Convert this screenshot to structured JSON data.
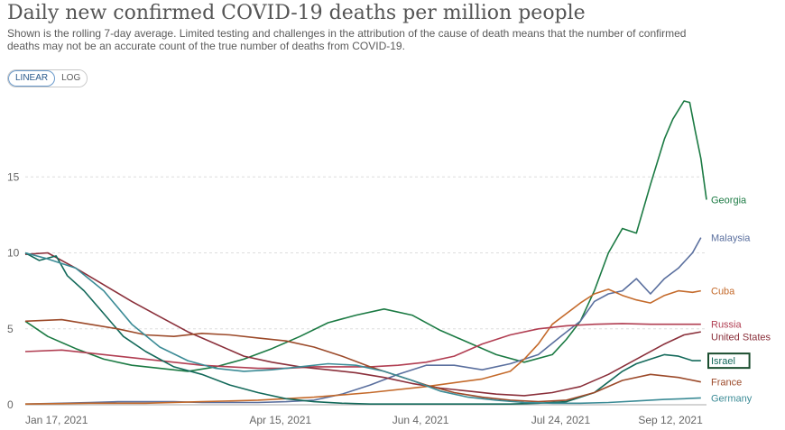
{
  "title": "Daily new confirmed COVID-19 deaths per million people",
  "subtitle": "Shown is the rolling 7-day average. Limited testing and challenges in the attribution of the cause of death means that the number of confirmed deaths may not be an accurate count of the true number of deaths from COVID-19.",
  "scale_toggle": {
    "linear": "LINEAR",
    "log": "LOG",
    "active": "linear"
  },
  "chart_data": {
    "type": "line",
    "x_tick_labels": [
      "Jan 17, 2021",
      "Apr 15, 2021",
      "Jun 4, 2021",
      "Jul 24, 2021",
      "Sep 12, 2021"
    ],
    "x_tick_days": [
      0,
      88,
      138,
      188,
      238
    ],
    "x_range_days": [
      -3,
      240
    ],
    "y_ticks": [
      0,
      5,
      10,
      15
    ],
    "ylim": [
      0,
      20
    ],
    "grid": true,
    "highlighted_series": "Israel",
    "series": [
      {
        "name": "Georgia",
        "color": "#1b7a43",
        "x": [
          -3,
          5,
          15,
          25,
          35,
          45,
          55,
          65,
          75,
          85,
          95,
          105,
          115,
          125,
          135,
          145,
          155,
          165,
          175,
          185,
          190,
          195,
          200,
          205,
          210,
          215,
          220,
          225,
          228,
          232,
          234,
          236,
          238,
          240
        ],
        "y": [
          5.5,
          4.5,
          3.7,
          3.0,
          2.6,
          2.4,
          2.2,
          2.5,
          3.0,
          3.7,
          4.5,
          5.4,
          5.9,
          6.3,
          5.9,
          4.9,
          4.1,
          3.3,
          2.8,
          3.3,
          4.3,
          5.5,
          7.5,
          10.0,
          11.6,
          11.3,
          14.5,
          17.5,
          18.8,
          20.0,
          19.9,
          18.0,
          16.2,
          13.5
        ]
      },
      {
        "name": "Malaysia",
        "color": "#5a6f9e",
        "x": [
          -3,
          10,
          20,
          30,
          40,
          50,
          60,
          70,
          80,
          90,
          100,
          110,
          120,
          130,
          140,
          150,
          160,
          170,
          180,
          188,
          195,
          200,
          205,
          210,
          215,
          220,
          225,
          230,
          235,
          238
        ],
        "y": [
          0.05,
          0.1,
          0.15,
          0.2,
          0.2,
          0.2,
          0.15,
          0.15,
          0.15,
          0.2,
          0.3,
          0.7,
          1.3,
          2.0,
          2.6,
          2.6,
          2.3,
          2.7,
          3.3,
          4.5,
          5.5,
          6.8,
          7.3,
          7.5,
          8.3,
          7.3,
          8.3,
          9.0,
          10.0,
          11.0
        ]
      },
      {
        "name": "Cuba",
        "color": "#c46a2b",
        "x": [
          -3,
          20,
          40,
          60,
          80,
          100,
          120,
          140,
          160,
          170,
          175,
          180,
          185,
          190,
          195,
          200,
          205,
          210,
          215,
          220,
          225,
          230,
          235,
          238
        ],
        "y": [
          0.05,
          0.1,
          0.1,
          0.2,
          0.3,
          0.5,
          0.8,
          1.2,
          1.7,
          2.2,
          3.0,
          4.0,
          5.3,
          6.0,
          6.7,
          7.3,
          7.6,
          7.2,
          6.9,
          6.7,
          7.2,
          7.5,
          7.4,
          7.5
        ]
      },
      {
        "name": "Russia",
        "color": "#b13e52",
        "x": [
          -3,
          10,
          20,
          30,
          40,
          50,
          60,
          70,
          80,
          90,
          100,
          110,
          120,
          130,
          140,
          150,
          160,
          170,
          180,
          190,
          200,
          210,
          220,
          230,
          238
        ],
        "y": [
          3.5,
          3.6,
          3.4,
          3.2,
          3.0,
          2.8,
          2.6,
          2.5,
          2.4,
          2.4,
          2.5,
          2.5,
          2.5,
          2.6,
          2.8,
          3.2,
          4.0,
          4.6,
          5.0,
          5.2,
          5.3,
          5.35,
          5.3,
          5.3,
          5.3
        ]
      },
      {
        "name": "United States",
        "color": "#8a2f3a",
        "x": [
          -3,
          5,
          15,
          25,
          35,
          45,
          55,
          65,
          75,
          85,
          95,
          105,
          115,
          125,
          135,
          145,
          155,
          165,
          175,
          185,
          195,
          205,
          215,
          225,
          232,
          238
        ],
        "y": [
          9.9,
          10.0,
          9.0,
          7.9,
          6.8,
          5.8,
          4.8,
          4.0,
          3.2,
          2.8,
          2.5,
          2.3,
          2.1,
          1.8,
          1.4,
          1.1,
          0.9,
          0.7,
          0.6,
          0.8,
          1.2,
          2.0,
          3.0,
          4.0,
          4.6,
          4.8
        ]
      },
      {
        "name": "Israel",
        "color": "#13695a",
        "x": [
          -3,
          2,
          8,
          12,
          18,
          25,
          32,
          40,
          50,
          60,
          70,
          80,
          90,
          100,
          110,
          120,
          130,
          140,
          150,
          160,
          170,
          180,
          190,
          200,
          205,
          210,
          215,
          220,
          225,
          230,
          235,
          238
        ],
        "y": [
          10.0,
          9.5,
          9.8,
          8.5,
          7.5,
          6.0,
          4.5,
          3.5,
          2.5,
          2.0,
          1.3,
          0.8,
          0.4,
          0.2,
          0.1,
          0.05,
          0.05,
          0.05,
          0.05,
          0.05,
          0.05,
          0.1,
          0.2,
          0.8,
          1.5,
          2.2,
          2.7,
          3.0,
          3.3,
          3.2,
          2.9,
          2.9
        ]
      },
      {
        "name": "France",
        "color": "#9c4a2a",
        "x": [
          -3,
          10,
          20,
          30,
          40,
          50,
          60,
          70,
          80,
          90,
          100,
          110,
          120,
          130,
          140,
          150,
          160,
          170,
          180,
          190,
          200,
          210,
          220,
          230,
          238
        ],
        "y": [
          5.5,
          5.6,
          5.3,
          5.0,
          4.6,
          4.5,
          4.7,
          4.6,
          4.4,
          4.2,
          3.8,
          3.2,
          2.5,
          1.9,
          1.3,
          0.8,
          0.5,
          0.3,
          0.2,
          0.3,
          0.8,
          1.6,
          2.0,
          1.8,
          1.5
        ]
      },
      {
        "name": "Germany",
        "color": "#3b8b96",
        "x": [
          -3,
          5,
          15,
          25,
          35,
          45,
          55,
          65,
          75,
          85,
          95,
          105,
          115,
          125,
          135,
          145,
          155,
          165,
          175,
          185,
          195,
          205,
          215,
          225,
          232,
          238
        ],
        "y": [
          10.0,
          9.6,
          9.0,
          7.5,
          5.3,
          3.8,
          2.9,
          2.4,
          2.2,
          2.3,
          2.5,
          2.7,
          2.6,
          2.2,
          1.6,
          0.9,
          0.5,
          0.3,
          0.15,
          0.1,
          0.1,
          0.15,
          0.25,
          0.35,
          0.4,
          0.45
        ]
      }
    ]
  }
}
